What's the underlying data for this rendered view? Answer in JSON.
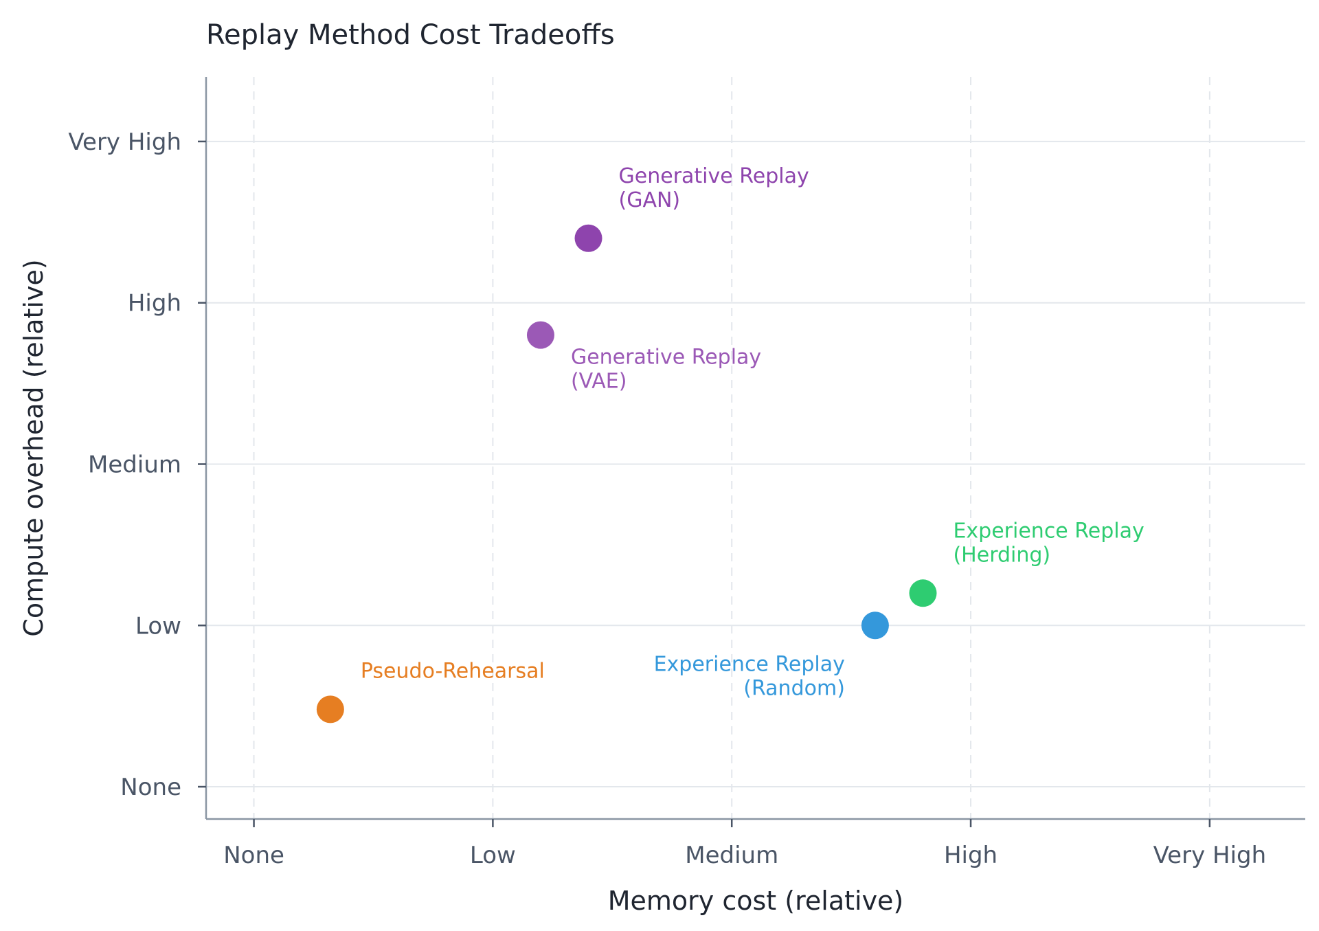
{
  "chart_data": {
    "type": "scatter",
    "title": "Replay Method Cost Tradeoffs",
    "xlabel": "Memory cost (relative)",
    "ylabel": "Compute overhead (relative)",
    "xlim": [
      -0.2,
      4.4
    ],
    "ylim": [
      -0.2,
      4.4
    ],
    "xticks": [
      0,
      1,
      2,
      3,
      4
    ],
    "xticklabels": [
      "None",
      "Low",
      "Medium",
      "High",
      "Very High"
    ],
    "yticks": [
      0,
      1,
      2,
      3,
      4
    ],
    "yticklabels": [
      "None",
      "Low",
      "Medium",
      "High",
      "Very High"
    ],
    "grid": true,
    "points": [
      {
        "label": [
          "Generative Replay",
          "(GAN)"
        ],
        "x": 1.4,
        "y": 3.4,
        "color": "#8e44ad",
        "label_pos": "upper-right"
      },
      {
        "label": [
          "Generative Replay",
          "(VAE)"
        ],
        "x": 1.2,
        "y": 2.8,
        "color": "#9b59b6",
        "label_pos": "lower-right"
      },
      {
        "label": [
          "Experience Replay",
          "(Herding)"
        ],
        "x": 2.8,
        "y": 1.2,
        "color": "#2ecc71",
        "label_pos": "upper-right"
      },
      {
        "label": [
          "Experience Replay",
          "(Random)"
        ],
        "x": 2.6,
        "y": 1.0,
        "color": "#3498db",
        "label_pos": "lower-left"
      },
      {
        "label": [
          "Pseudo-Rehearsal"
        ],
        "x": 0.32,
        "y": 0.48,
        "color": "#e67e22",
        "label_pos": "upper-right"
      }
    ]
  }
}
